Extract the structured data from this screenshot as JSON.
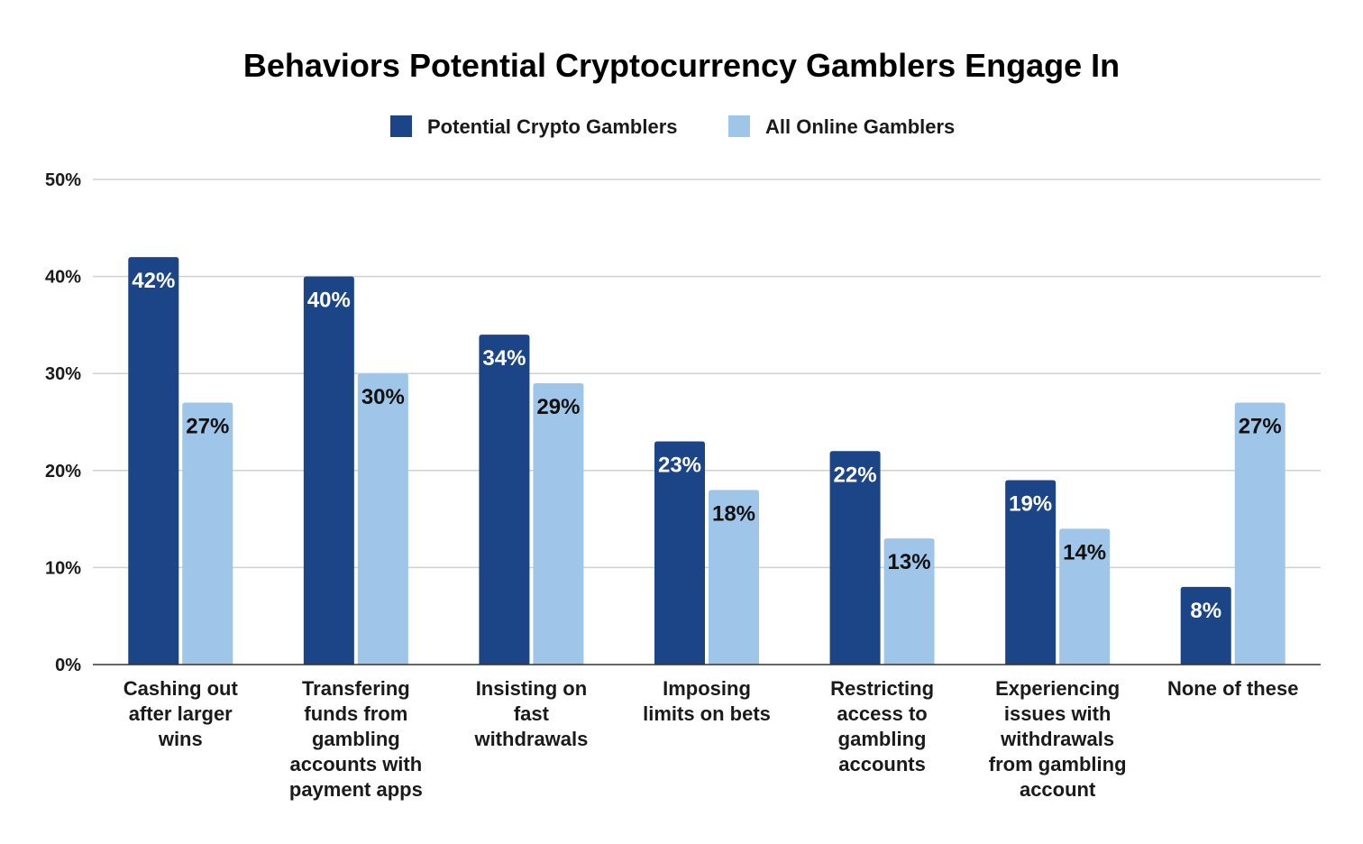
{
  "chart_data": {
    "type": "bar",
    "title": "Behaviors Potential Cryptocurrency Gamblers Engage In",
    "categories": [
      [
        "Cashing out",
        "after larger",
        "wins"
      ],
      [
        "Transfering",
        "funds from",
        "gambling",
        "accounts with",
        "payment apps"
      ],
      [
        "Insisting on",
        "fast",
        "withdrawals"
      ],
      [
        "Imposing",
        "limits on bets"
      ],
      [
        "Restricting",
        "access to",
        "gambling",
        "accounts"
      ],
      [
        "Experiencing",
        "issues with",
        "withdrawals",
        "from gambling",
        "account"
      ],
      [
        "None of these"
      ]
    ],
    "series": [
      {
        "name": "Potential Crypto Gamblers",
        "values": [
          42,
          40,
          34,
          23,
          22,
          19,
          8
        ],
        "labels": [
          "42%",
          "40%",
          "34%",
          "23%",
          "22%",
          "19%",
          "8%"
        ],
        "color": "#1c4587",
        "label_color": "#ffffff"
      },
      {
        "name": "All Online Gamblers",
        "values": [
          27,
          30,
          29,
          18,
          13,
          14,
          27
        ],
        "labels": [
          "27%",
          "30%",
          "29%",
          "18%",
          "13%",
          "14%",
          "27%"
        ],
        "color": "#9fc5e8",
        "label_color": "#111111"
      }
    ],
    "y_ticks": [
      "0%",
      "10%",
      "20%",
      "30%",
      "40%",
      "50%"
    ],
    "ylim": [
      0,
      50
    ],
    "y_step": 10,
    "grid": true,
    "legend_position": "top-center"
  }
}
